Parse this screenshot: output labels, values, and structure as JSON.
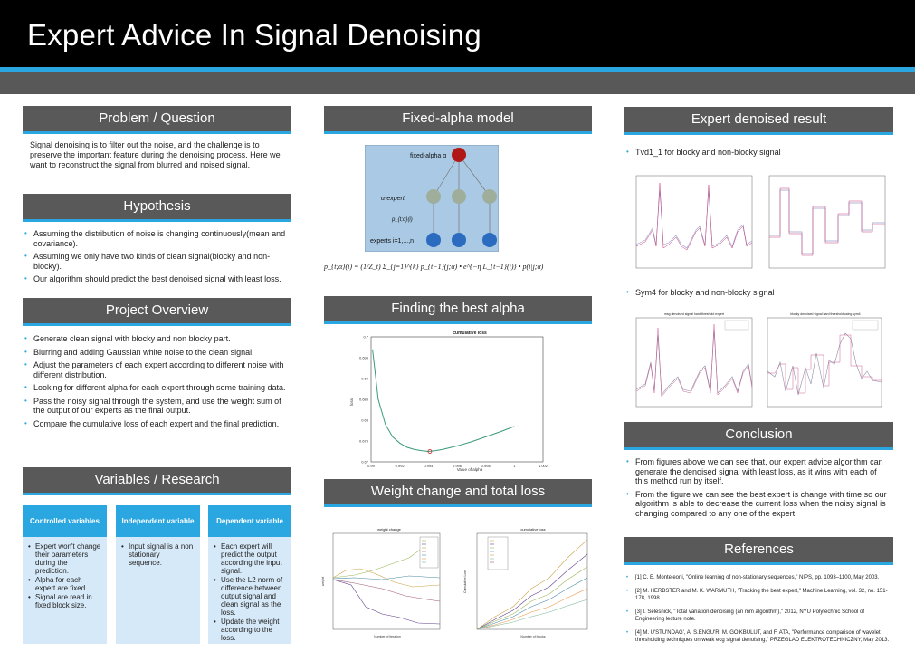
{
  "title": "Expert Advice In Signal Denoising",
  "problem": {
    "heading": "Problem / Question",
    "text": "Signal denoising is to filter out the noise, and the challenge is to preserve the important feature during the denoising process. Here we want to reconstruct the signal from blurred and noised signal."
  },
  "hypothesis": {
    "heading": "Hypothesis",
    "items": [
      "Assuming the distribution of noise is changing continuously(mean and covariance).",
      "Assuming we only have two kinds of clean signal(blocky and non-blocky).",
      "Our algorithm should predict the best denoised signal with least loss."
    ]
  },
  "overview": {
    "heading": "Project Overview",
    "items": [
      "Generate clean signal with blocky and non blocky part.",
      "Blurring and adding Gaussian white noise to the clean signal.",
      "Adjust the parameters of each expert according to different noise with different distribution.",
      "Looking for different alpha for each expert through some training data.",
      "Pass the noisy signal through the system, and use the weight sum of the output of our experts as the final output.",
      "Compare the cumulative loss of each expert and the final prediction."
    ]
  },
  "variables": {
    "heading": "Variables / Research",
    "controlled": {
      "title": "Controlled variables",
      "items": [
        "Expert won't change their parameters during the prediction.",
        "Alpha for each expert are fixed.",
        "Signal are read in fixed block size."
      ]
    },
    "independent": {
      "title": "Independent variable",
      "items": [
        "Input signal is a non stationary sequence."
      ]
    },
    "dependent": {
      "title": "Dependent variable",
      "items": [
        "Each expert will predict the output according the input signal.",
        "Use the L2 norm of difference between output signal and clean signal as the loss.",
        "Update the weight according to the loss."
      ]
    }
  },
  "fixed_alpha": {
    "heading": "Fixed-alpha model",
    "diagram": {
      "top_label": "fixed-alpha α",
      "mid_label": "α-expert",
      "edge_label": "p_{t;α}(i)",
      "bottom_label": "experts i=1,...,n"
    },
    "formula": "p_{t;α}(i) = (1/Z_t) Σ_{j=1}^{k} p_{t−1}(j;α) • e^{−η L_{t−1}(i)} • p(i|j;α)"
  },
  "best_alpha": {
    "heading": "Finding the best alpha",
    "chart_data": {
      "type": "line",
      "title": "cumulative loss",
      "xlabel": "Value of alpha",
      "ylabel": "loss",
      "x_ticks": [
        "0.99",
        "0.992",
        "0.994",
        "0.996",
        "0.998",
        "1",
        "1.002"
      ],
      "y_ticks": [
        "0.7",
        "0.695",
        "0.69",
        "0.685",
        "0.68",
        "0.675",
        "0.67"
      ],
      "xlim": [
        0.99,
        1.002
      ],
      "ylim": [
        0.67,
        0.7
      ],
      "series": [
        {
          "x": [
            0.9901,
            0.9905,
            0.991,
            0.9915,
            0.992,
            0.9925,
            0.993,
            0.9935,
            0.994,
            0.9945,
            0.995,
            0.996,
            0.997,
            0.998,
            0.999,
            1.0
          ],
          "values": [
            0.697,
            0.685,
            0.679,
            0.676,
            0.6745,
            0.6735,
            0.673,
            0.6727,
            0.6725,
            0.6727,
            0.673,
            0.6738,
            0.6748,
            0.676,
            0.6772,
            0.6785
          ]
        }
      ],
      "marker": {
        "x": 0.9941,
        "y": 0.6725
      }
    }
  },
  "weight": {
    "heading": "Weight change and total loss",
    "chart1": {
      "title": "weight change",
      "xlabel": "Number of iteration",
      "ylabel": "weight"
    },
    "chart2": {
      "title": "cumulative loss",
      "xlabel": "Number of blocks",
      "ylabel": "Cumulative Loss"
    }
  },
  "result": {
    "heading": "Expert denoised result",
    "caption1": "Tvd1_1 for blocky and non-blocky signal",
    "caption2": "Sym4 for blocky and non-blocky signal",
    "plot_a_title": "msg denoised signal hard threshold expert",
    "plot_b_title": "blocky denoised signal hard threshold using sym4"
  },
  "conclusion": {
    "heading": "Conclusion",
    "items": [
      "From figures above we can see that, our expert advice algorithm can generate the denoised signal with least loss, as it wins with each of this method run by itself.",
      "From the figure we can see the best expert is change with time so our algorithm is able to decrease the current loss when the noisy signal is changing compared to any one of the expert."
    ]
  },
  "references": {
    "heading": "References",
    "items": [
      "[1]  C. E. Monteleoni, \"Online learning of non-stationary sequences,\" NIPS, pp. 1093–1100, May 2003.",
      "[2]  M. HERBSTER and M. K. WARMUTH, \"Tracking the best expert,\" Machine Learning, vol. 32, no. 151-178, 1998.",
      "[3]  I. Selesnick, \"Total variation denoising (an mm algorithm),\" 2012, NYU Polytechnic School of Engineering lecture note.",
      "[4]  M. U'STU'NDAG', A. S.ENGU'R, M. GO'KBULUT, and F. ATA, \"Performance comparison of wavelet thresholding techniques on weak ecg signal denoising,\" PRZEGLAD ELEKTROTECHNICZNY, May 2013."
    ]
  },
  "colors": {
    "accent": "#2aa6e0",
    "header_bg": "#595959",
    "title_bg": "#000000",
    "diagram_bg": "#a9c9e4",
    "node_red": "#b01818",
    "node_green": "#9fae9a",
    "node_blue": "#2b6cc0"
  }
}
